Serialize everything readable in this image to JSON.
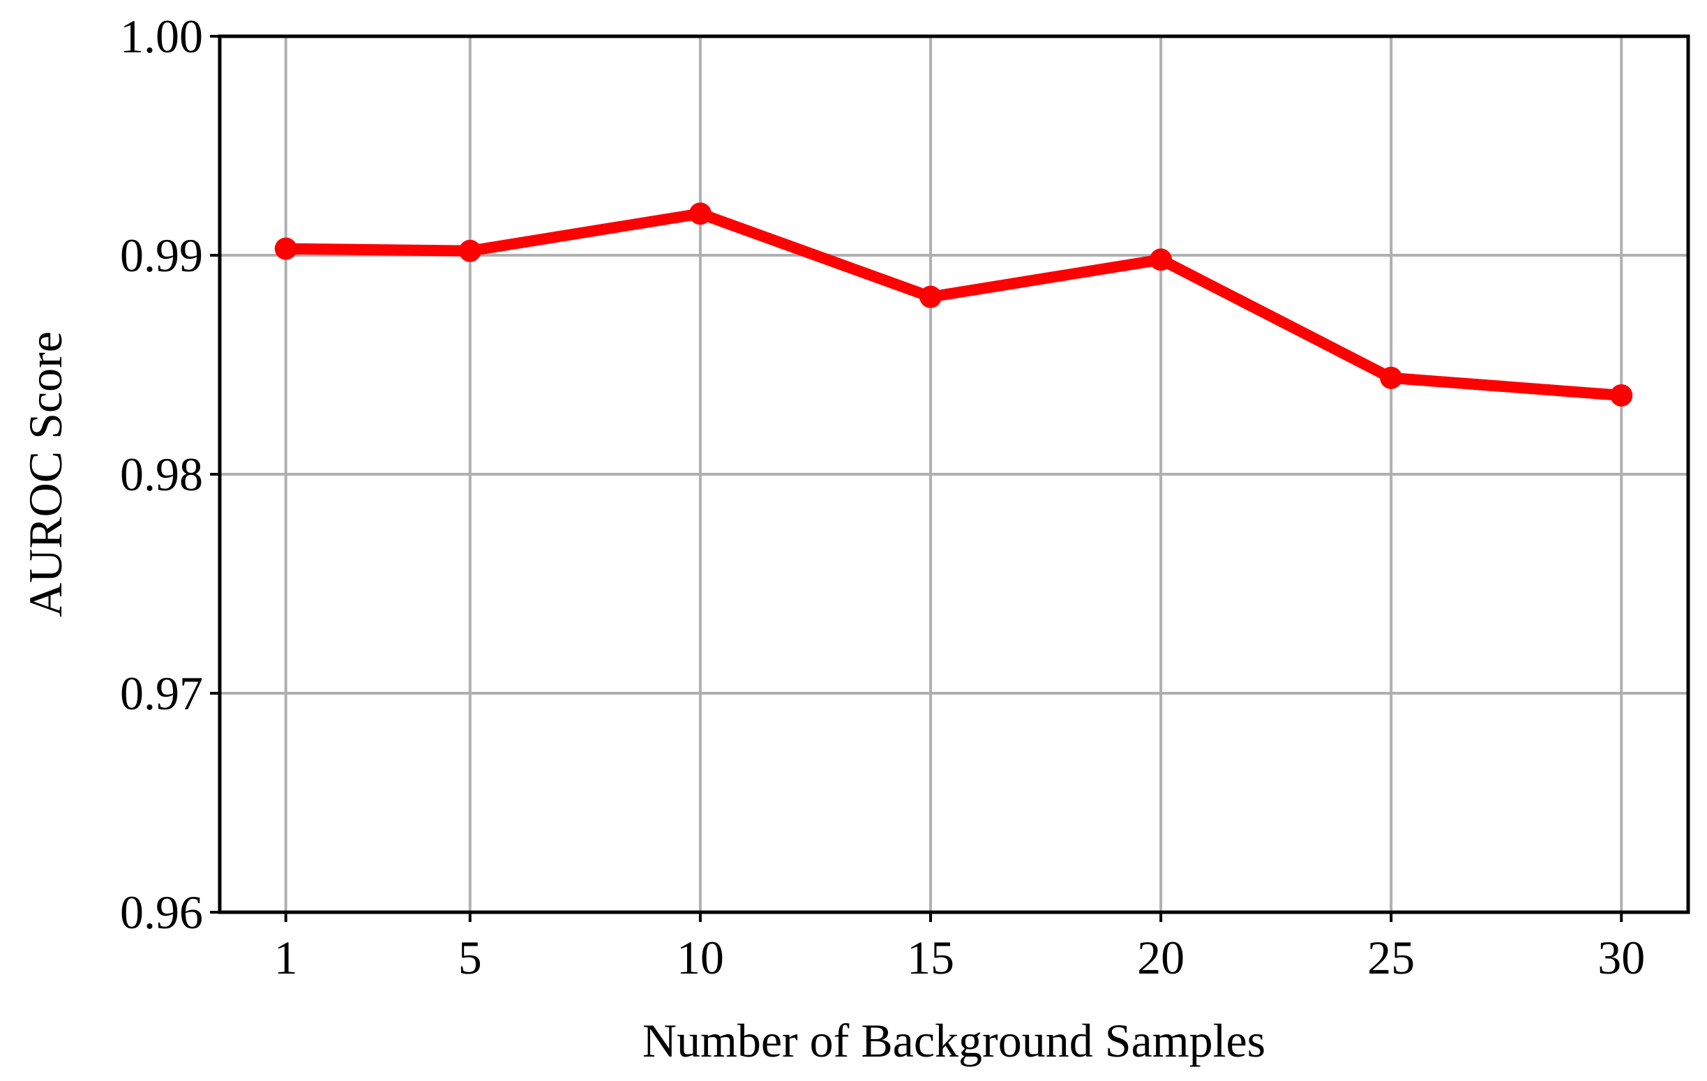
{
  "chart_data": {
    "type": "line",
    "title": "",
    "xlabel": "Number of Background Samples",
    "ylabel": "AUROC Score",
    "x": [
      1,
      5,
      10,
      15,
      20,
      25,
      30
    ],
    "x_tick_labels": [
      "1",
      "5",
      "10",
      "15",
      "20",
      "25",
      "30"
    ],
    "y_ticks": [
      0.96,
      0.97,
      0.98,
      0.99,
      1.0
    ],
    "y_tick_labels": [
      "0.96",
      "0.97",
      "0.98",
      "0.99",
      "1.00"
    ],
    "ylim": [
      0.96,
      1.0
    ],
    "grid": true,
    "legend": "none",
    "series": [
      {
        "values": [
          0.9903,
          0.9902,
          0.9919,
          0.9881,
          0.9898,
          0.9844,
          0.9836
        ],
        "color": "#ff0000",
        "marker": "circle"
      }
    ]
  }
}
